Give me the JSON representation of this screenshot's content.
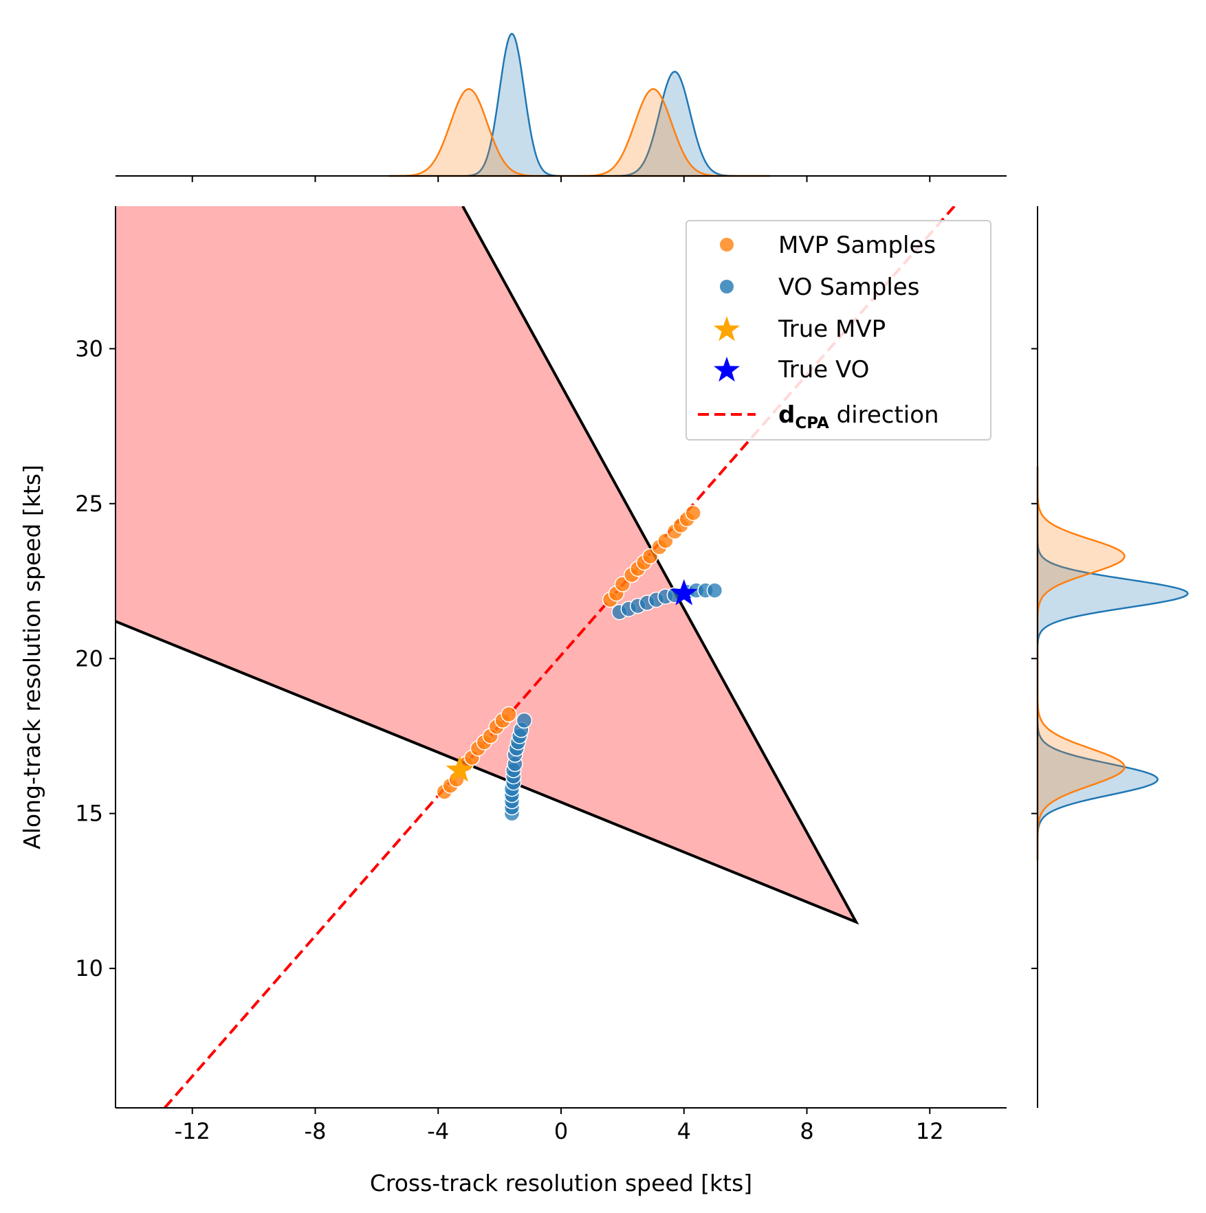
{
  "chart_data": {
    "type": "scatter",
    "xlabel": "Cross-track resolution speed [kts]",
    "ylabel": "Along-track resolution speed [kts]",
    "xlim": [
      -14.5,
      14.5
    ],
    "ylim": [
      5.5,
      34.6
    ],
    "xticks": [
      -12,
      -8,
      -4,
      0,
      4,
      8,
      12
    ],
    "xtick_labels": [
      "-12",
      "-8",
      "-4",
      "0",
      "4",
      "8",
      "12"
    ],
    "yticks": [
      10,
      15,
      20,
      25,
      30
    ],
    "ytick_labels": [
      "10",
      "15",
      "20",
      "25",
      "30"
    ],
    "colors": {
      "mvp": "#ff7f0e",
      "vo": "#1f77b4",
      "true_mvp": "#ffa500",
      "true_vo": "#0000ff",
      "dcpa": "#ff0000",
      "region_fill": "#ffb3b3",
      "region_edge": "#000000"
    },
    "legend": {
      "placement": "upper right",
      "entries": [
        {
          "label": "MVP Samples",
          "marker": "circle",
          "color": "#ff7f0e"
        },
        {
          "label": "VO Samples",
          "marker": "circle",
          "color": "#1f77b4"
        },
        {
          "label": "True MVP",
          "marker": "star",
          "color": "#ffa500"
        },
        {
          "label": "True VO",
          "marker": "star",
          "color": "#0000ff"
        },
        {
          "label_bold": "d",
          "label_sub": "CPA",
          "label_rest": " direction",
          "marker": "dashed-line",
          "color": "#ff0000"
        }
      ]
    },
    "conflict_region": {
      "vertices": [
        [
          -14.5,
          34.6
        ],
        [
          -3.2,
          34.6
        ],
        [
          9.6,
          11.5
        ],
        [
          -14.5,
          21.2
        ]
      ]
    },
    "dcpa_line": {
      "points": [
        [
          -12.9,
          5.5
        ],
        [
          12.8,
          34.6
        ]
      ]
    },
    "true_mvp": {
      "x": -3.3,
      "y": 16.4
    },
    "true_vo": {
      "x": 4.0,
      "y": 22.1
    },
    "series": [
      {
        "name": "MVP Samples",
        "points": [
          [
            -3.8,
            15.7
          ],
          [
            -3.6,
            15.9
          ],
          [
            -3.4,
            16.1
          ],
          [
            -3.1,
            16.6
          ],
          [
            -2.9,
            16.8
          ],
          [
            -2.7,
            17.1
          ],
          [
            -2.5,
            17.3
          ],
          [
            -2.3,
            17.5
          ],
          [
            -2.1,
            17.8
          ],
          [
            -1.9,
            18.0
          ],
          [
            -1.7,
            18.2
          ],
          [
            1.6,
            21.9
          ],
          [
            1.8,
            22.1
          ],
          [
            2.0,
            22.4
          ],
          [
            2.3,
            22.7
          ],
          [
            2.5,
            22.9
          ],
          [
            2.7,
            23.1
          ],
          [
            2.9,
            23.3
          ],
          [
            3.2,
            23.6
          ],
          [
            3.4,
            23.8
          ],
          [
            3.7,
            24.1
          ],
          [
            3.9,
            24.3
          ],
          [
            4.1,
            24.5
          ],
          [
            4.3,
            24.7
          ]
        ]
      },
      {
        "name": "VO Samples",
        "points": [
          [
            -1.6,
            15.0
          ],
          [
            -1.6,
            15.2
          ],
          [
            -1.6,
            15.4
          ],
          [
            -1.6,
            15.6
          ],
          [
            -1.6,
            15.8
          ],
          [
            -1.55,
            16.0
          ],
          [
            -1.55,
            16.2
          ],
          [
            -1.55,
            16.4
          ],
          [
            -1.5,
            16.6
          ],
          [
            -1.5,
            16.9
          ],
          [
            -1.45,
            17.1
          ],
          [
            -1.4,
            17.3
          ],
          [
            -1.35,
            17.5
          ],
          [
            -1.3,
            17.7
          ],
          [
            -1.2,
            18.0
          ],
          [
            1.9,
            21.5
          ],
          [
            2.2,
            21.6
          ],
          [
            2.5,
            21.7
          ],
          [
            2.8,
            21.8
          ],
          [
            3.1,
            21.9
          ],
          [
            3.4,
            22.0
          ],
          [
            3.7,
            22.05
          ],
          [
            4.1,
            22.15
          ],
          [
            4.4,
            22.2
          ],
          [
            4.7,
            22.2
          ],
          [
            5.0,
            22.2
          ]
        ]
      }
    ],
    "marginal_x": {
      "mvp_peaks": [
        [
          -3.0,
          0.6,
          0.55
        ],
        [
          3.0,
          0.6,
          0.55
        ]
      ],
      "vo_peaks": [
        [
          -1.6,
          0.4,
          0.9
        ],
        [
          3.7,
          0.5,
          0.66
        ]
      ]
    },
    "marginal_y": {
      "mvp_peaks": [
        [
          23.3,
          0.55,
          0.55
        ],
        [
          16.5,
          0.6,
          0.55
        ]
      ],
      "vo_peaks": [
        [
          22.1,
          0.45,
          0.95
        ],
        [
          16.1,
          0.5,
          0.76
        ]
      ]
    }
  }
}
